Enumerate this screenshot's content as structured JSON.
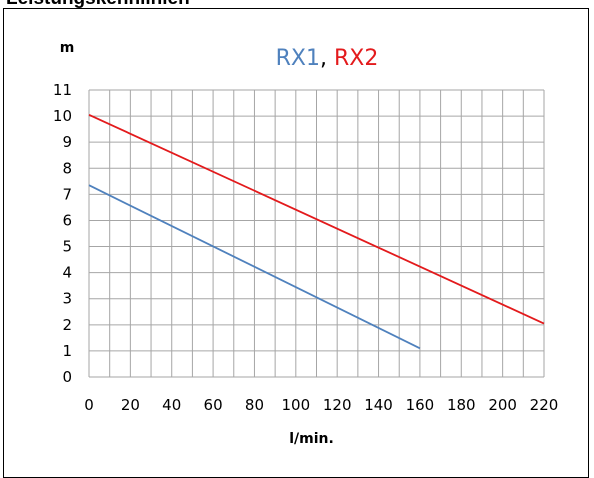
{
  "heading": "Leistungskennlinien",
  "chart_data": {
    "type": "line",
    "title_parts": [
      {
        "text": "RX1",
        "color": "#4f81bd"
      },
      {
        "text": ", ",
        "color": "#000000"
      },
      {
        "text": "RX2",
        "color": "#e31a1c"
      }
    ],
    "xlabel": "l/min.",
    "ylabel": "m",
    "xlim": [
      0,
      220
    ],
    "ylim": [
      0,
      11
    ],
    "x_ticks": [
      0,
      20,
      40,
      60,
      80,
      100,
      120,
      140,
      160,
      180,
      200,
      220
    ],
    "y_ticks": [
      0,
      1,
      2,
      3,
      4,
      5,
      6,
      7,
      8,
      9,
      10,
      11
    ],
    "grid": true,
    "series": [
      {
        "name": "RX1",
        "color": "#4f81bd",
        "x": [
          0,
          160
        ],
        "y": [
          7.35,
          1.1
        ]
      },
      {
        "name": "RX2",
        "color": "#e31a1c",
        "x": [
          0,
          220
        ],
        "y": [
          10.05,
          2.05
        ]
      }
    ]
  }
}
